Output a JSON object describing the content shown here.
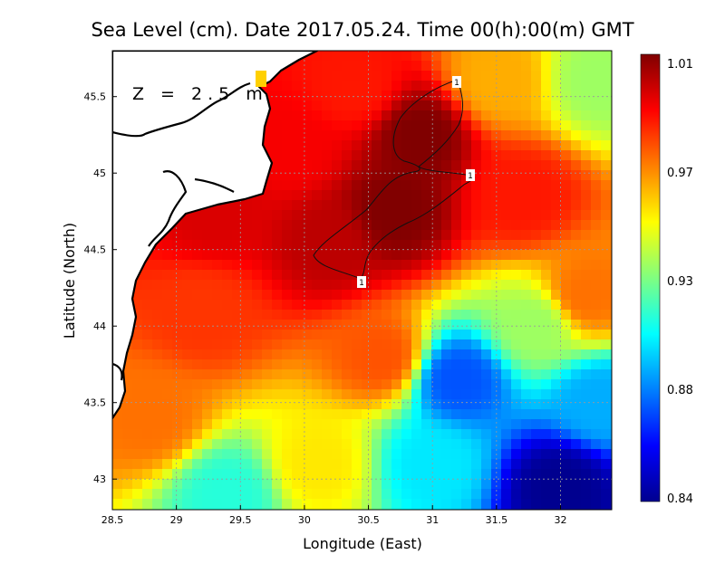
{
  "chart_data": {
    "type": "heatmap",
    "title": "Sea Level (cm). Date 2017.05.24. Time 00(h):00(m) GMT",
    "xlabel": "Longitude (East)",
    "ylabel": "Latitude (North)",
    "xlim": [
      28.5,
      32.4
    ],
    "ylim": [
      42.8,
      45.8
    ],
    "x_ticks": [
      "28.5",
      "29",
      "29.5",
      "30",
      "30.5",
      "31",
      "31.5",
      "32"
    ],
    "y_ticks": [
      "43",
      "43.5",
      "44",
      "44.5",
      "45",
      "45.5"
    ],
    "annotation": "Z = 2.5 m",
    "colorbar": {
      "min": 0.84,
      "max": 1.01,
      "tick_labels": [
        "1.01",
        "0.97",
        "0.93",
        "0.88",
        "0.84"
      ],
      "colormap": [
        "#00008f",
        "#0000ff",
        "#0080ff",
        "#00ffff",
        "#80ff80",
        "#ffff00",
        "#ff8000",
        "#ff0000",
        "#800000"
      ]
    },
    "contour_labels": [
      "1",
      "1",
      "1"
    ],
    "field_samples": [
      {
        "lon": 30.9,
        "lat": 45.25,
        "value": 1.01
      },
      {
        "lon": 30.7,
        "lat": 44.75,
        "value": 1.01
      },
      {
        "lon": 30.2,
        "lat": 44.55,
        "value": 1.0
      },
      {
        "lon": 29.3,
        "lat": 44.75,
        "value": 0.995
      },
      {
        "lon": 29.9,
        "lat": 45.15,
        "value": 0.99
      },
      {
        "lon": 30.4,
        "lat": 45.55,
        "value": 0.985
      },
      {
        "lon": 31.7,
        "lat": 44.85,
        "value": 0.985
      },
      {
        "lon": 29.2,
        "lat": 44.1,
        "value": 0.98
      },
      {
        "lon": 30.6,
        "lat": 43.8,
        "value": 0.975
      },
      {
        "lon": 31.5,
        "lat": 45.6,
        "value": 0.96
      },
      {
        "lon": 28.8,
        "lat": 43.4,
        "value": 0.97
      },
      {
        "lon": 32.2,
        "lat": 44.2,
        "value": 0.97
      },
      {
        "lon": 32.3,
        "lat": 45.6,
        "value": 0.93
      },
      {
        "lon": 29.4,
        "lat": 42.9,
        "value": 0.91
      },
      {
        "lon": 31.2,
        "lat": 43.65,
        "value": 0.875
      },
      {
        "lon": 30.1,
        "lat": 43.1,
        "value": 0.95
      },
      {
        "lon": 31.0,
        "lat": 43.1,
        "value": 0.9
      },
      {
        "lon": 32.0,
        "lat": 42.95,
        "value": 0.84
      },
      {
        "lon": 32.3,
        "lat": 43.5,
        "value": 0.89
      },
      {
        "lon": 31.8,
        "lat": 44.0,
        "value": 0.93
      }
    ]
  }
}
